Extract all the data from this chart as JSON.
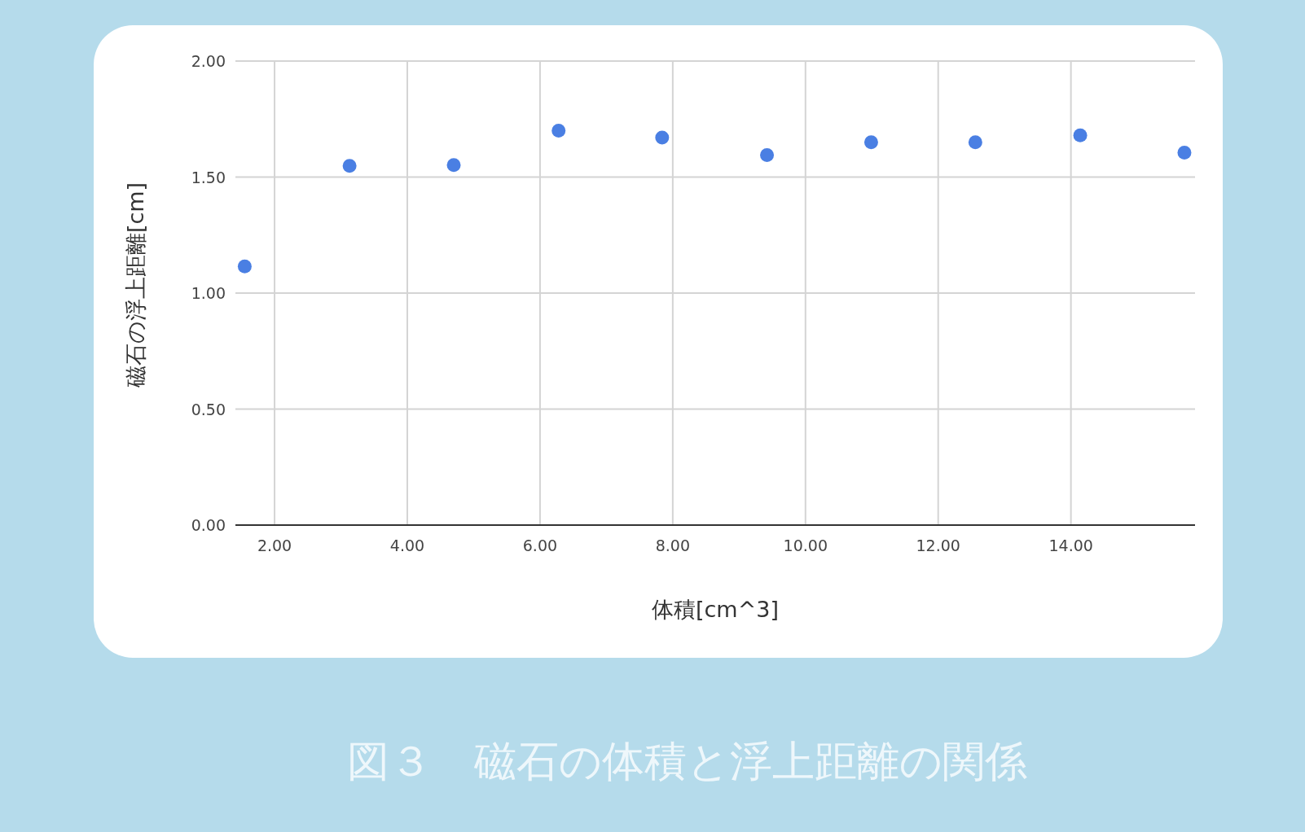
{
  "chart_data": {
    "type": "scatter",
    "title": "図３　磁石の体積と浮上距離の関係",
    "xlabel": "体積[cm^3]",
    "ylabel": "磁石の浮上距離[cm]",
    "x": [
      1.55,
      3.13,
      4.7,
      6.28,
      7.84,
      9.42,
      10.99,
      12.56,
      14.14,
      15.71
    ],
    "series": [
      {
        "color": "#4a7fe3",
        "values": [
          1.115,
          1.548,
          1.552,
          1.7,
          1.67,
          1.595,
          1.65,
          1.65,
          1.68,
          1.605
        ]
      }
    ],
    "xlim": [
      1.41,
      15.87
    ],
    "ylim": [
      0,
      2
    ],
    "xticks": [
      {
        "value": 2,
        "label": "2.00"
      },
      {
        "value": 4,
        "label": "4.00"
      },
      {
        "value": 6,
        "label": "6.00"
      },
      {
        "value": 8,
        "label": "8.00"
      },
      {
        "value": 10,
        "label": "10.00"
      },
      {
        "value": 12,
        "label": "12.00"
      },
      {
        "value": 14,
        "label": "14.00"
      }
    ],
    "yticks": [
      {
        "value": 0,
        "label": "0.00"
      },
      {
        "value": 0.5,
        "label": "0.50"
      },
      {
        "value": 1,
        "label": "1.00"
      },
      {
        "value": 1.5,
        "label": "1.50"
      },
      {
        "value": 2,
        "label": "2.00"
      }
    ],
    "grid": true,
    "marker": "circle"
  }
}
